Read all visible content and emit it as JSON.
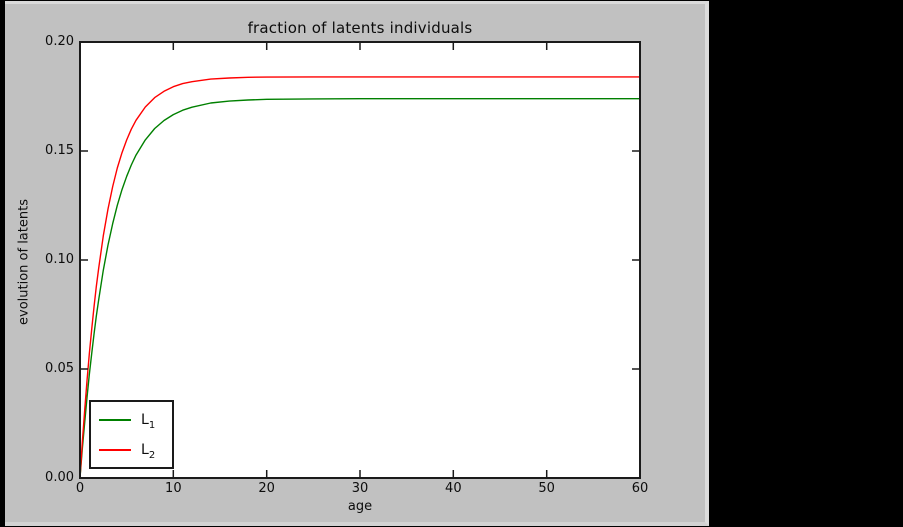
{
  "window": {
    "background": "#000000",
    "figure_background": "#c1c1c1",
    "axes_background": "#ffffff",
    "frame_color": "#1a1a1a"
  },
  "chart_data": {
    "type": "line",
    "title": "fraction of latents individuals",
    "xlabel": "age",
    "ylabel": "evolution of latents",
    "xlim": [
      0,
      60
    ],
    "ylim": [
      0,
      0.2
    ],
    "x_ticks": [
      "0",
      "10",
      "20",
      "30",
      "40",
      "50",
      "60"
    ],
    "y_ticks": [
      "0.00",
      "0.05",
      "0.10",
      "0.15",
      "0.20"
    ],
    "grid": false,
    "legend_position": "lower left",
    "x": [
      0,
      0.25,
      0.5,
      0.75,
      1,
      1.25,
      1.5,
      1.75,
      2,
      2.5,
      3,
      3.5,
      4,
      4.5,
      5,
      5.5,
      6,
      7,
      8,
      9,
      10,
      11,
      12,
      14,
      16,
      18,
      20,
      25,
      30,
      40,
      50,
      60
    ],
    "series": [
      {
        "name": "L_1",
        "color": "#008000",
        "plateau": 0.174,
        "values": [
          0,
          0.0133,
          0.0255,
          0.0369,
          0.0474,
          0.057,
          0.0659,
          0.0742,
          0.0818,
          0.0953,
          0.1069,
          0.1167,
          0.1251,
          0.1323,
          0.1384,
          0.1436,
          0.1481,
          0.1551,
          0.1603,
          0.164,
          0.1667,
          0.1687,
          0.1701,
          0.172,
          0.1729,
          0.1734,
          0.1737,
          0.1739,
          0.174,
          0.174,
          0.174,
          0.174
        ]
      },
      {
        "name": "L_2",
        "color": "#ff0000",
        "plateau": 0.184,
        "values": [
          0,
          0.0163,
          0.0311,
          0.0446,
          0.0569,
          0.0682,
          0.0784,
          0.0878,
          0.0963,
          0.1111,
          0.1234,
          0.1337,
          0.1422,
          0.1492,
          0.1551,
          0.16,
          0.1641,
          0.1702,
          0.1745,
          0.1774,
          0.1795,
          0.1809,
          0.1818,
          0.183,
          0.1835,
          0.1838,
          0.1839,
          0.184,
          0.184,
          0.184,
          0.184,
          0.184
        ]
      }
    ]
  },
  "legend": {
    "entries": [
      {
        "label": "L",
        "sub": "1",
        "color": "#008000"
      },
      {
        "label": "L",
        "sub": "2",
        "color": "#ff0000"
      }
    ]
  }
}
